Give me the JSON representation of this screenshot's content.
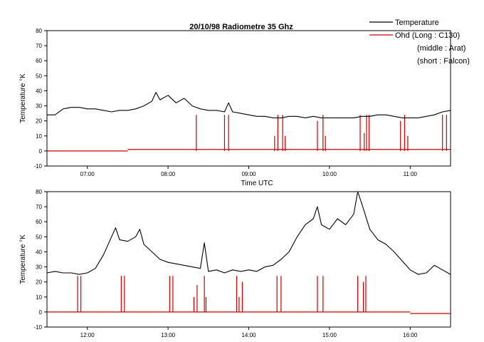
{
  "title": "20/10/98 Radiometre 35 Ghz",
  "legend": {
    "series": [
      {
        "label": "Temperature",
        "color": "#000000"
      },
      {
        "label": "Ohd (Long : C130)",
        "color": "#cc0000"
      }
    ],
    "extra_lines": [
      "(middle : Arat)",
      "(short : Falcon)"
    ],
    "placement": "top-right"
  },
  "chart_data": [
    {
      "type": "line",
      "xlabel": "Time UTC",
      "ylabel": "Temperature °K",
      "xlim": [
        6.5,
        11.5
      ],
      "ylim": [
        -10,
        80
      ],
      "yticks": [
        -10,
        0,
        10,
        20,
        30,
        40,
        50,
        60,
        70,
        80
      ],
      "xticks": [
        7,
        8,
        9,
        10,
        11
      ],
      "xtick_labels": [
        "07:00",
        "08:00",
        "09:00",
        "10:00",
        "11:00"
      ],
      "grid": false,
      "series": [
        {
          "name": "Temperature",
          "color": "#000000",
          "x": [
            6.5,
            6.6,
            6.7,
            6.8,
            6.9,
            7.0,
            7.1,
            7.2,
            7.3,
            7.4,
            7.5,
            7.6,
            7.7,
            7.8,
            7.85,
            7.9,
            8.0,
            8.1,
            8.2,
            8.3,
            8.4,
            8.5,
            8.6,
            8.7,
            8.75,
            8.8,
            8.9,
            9.0,
            9.1,
            9.2,
            9.3,
            9.4,
            9.5,
            9.6,
            9.7,
            9.8,
            9.9,
            10.0,
            10.1,
            10.2,
            10.3,
            10.4,
            10.5,
            10.6,
            10.7,
            10.8,
            10.9,
            11.0,
            11.1,
            11.2,
            11.3,
            11.4,
            11.5
          ],
          "y": [
            24,
            24,
            28,
            29,
            29,
            28,
            28,
            27,
            26,
            27,
            27,
            28,
            30,
            33,
            39,
            34,
            37,
            32,
            35,
            30,
            28,
            27,
            27,
            26,
            32,
            26,
            25,
            24,
            23,
            23,
            22,
            22,
            23,
            23,
            22,
            23,
            22,
            22,
            22,
            22,
            22,
            23,
            23,
            24,
            24,
            23,
            22,
            22,
            22,
            23,
            24,
            26,
            27
          ]
        },
        {
          "name": "Ohd",
          "color": "#cc0000",
          "baseline": [
            {
              "from": 6.5,
              "to": 7.5,
              "y": 0
            },
            {
              "from": 7.5,
              "to": 11.5,
              "y": 1
            }
          ],
          "spikes_x": [
            8.35,
            8.7,
            8.75,
            9.32,
            9.36,
            9.42,
            9.45,
            9.85,
            9.92,
            9.95,
            10.38,
            10.43,
            10.46,
            10.49,
            10.88,
            10.93,
            10.97,
            11.4,
            11.45
          ],
          "spikes_y": [
            24,
            24,
            24,
            10,
            24,
            24,
            10,
            20,
            24,
            10,
            24,
            12,
            24,
            24,
            20,
            24,
            10,
            24,
            24
          ]
        }
      ]
    },
    {
      "type": "line",
      "xlabel": "",
      "ylabel": "Temperature °K",
      "xlim": [
        11.5,
        16.5
      ],
      "ylim": [
        -10,
        80
      ],
      "yticks": [
        -10,
        0,
        10,
        20,
        30,
        40,
        50,
        60,
        70,
        80
      ],
      "xticks": [
        12,
        13,
        14,
        15,
        16
      ],
      "xtick_labels": [
        "12:00",
        "13:00",
        "14:00",
        "15:00",
        "16:00"
      ],
      "grid": false,
      "series": [
        {
          "name": "Temperature",
          "color": "#000000",
          "x": [
            11.5,
            11.6,
            11.7,
            11.8,
            11.9,
            12.0,
            12.1,
            12.2,
            12.3,
            12.35,
            12.4,
            12.5,
            12.6,
            12.65,
            12.7,
            12.8,
            12.9,
            13.0,
            13.1,
            13.2,
            13.3,
            13.4,
            13.45,
            13.5,
            13.6,
            13.7,
            13.8,
            13.9,
            14.0,
            14.1,
            14.2,
            14.3,
            14.4,
            14.5,
            14.6,
            14.7,
            14.8,
            14.85,
            14.9,
            15.0,
            15.1,
            15.2,
            15.3,
            15.35,
            15.4,
            15.5,
            15.6,
            15.7,
            15.8,
            15.9,
            16.0,
            16.1,
            16.2,
            16.3,
            16.4,
            16.5
          ],
          "y": [
            26,
            27,
            26,
            26,
            25,
            26,
            29,
            38,
            50,
            56,
            48,
            47,
            50,
            55,
            45,
            40,
            35,
            33,
            32,
            31,
            30,
            29,
            46,
            27,
            28,
            26,
            28,
            27,
            28,
            27,
            30,
            31,
            35,
            40,
            50,
            58,
            62,
            70,
            58,
            55,
            62,
            58,
            65,
            80,
            72,
            55,
            48,
            45,
            40,
            34,
            28,
            25,
            26,
            31,
            28,
            25
          ]
        },
        {
          "name": "Ohd",
          "color": "#cc0000",
          "baseline": [
            {
              "from": 11.5,
              "to": 16.0,
              "y": 0
            },
            {
              "from": 16.0,
              "to": 16.5,
              "y": -1
            }
          ],
          "spikes_x": [
            11.88,
            11.92,
            12.42,
            12.46,
            13.02,
            13.06,
            13.32,
            13.36,
            13.45,
            13.47,
            13.85,
            13.88,
            13.92,
            14.35,
            14.4,
            14.85,
            14.92,
            15.35,
            15.42,
            15.45
          ],
          "spikes_y": [
            24,
            24,
            24,
            24,
            24,
            24,
            10,
            18,
            24,
            10,
            24,
            10,
            20,
            24,
            24,
            24,
            24,
            24,
            20,
            24
          ]
        }
      ]
    }
  ]
}
